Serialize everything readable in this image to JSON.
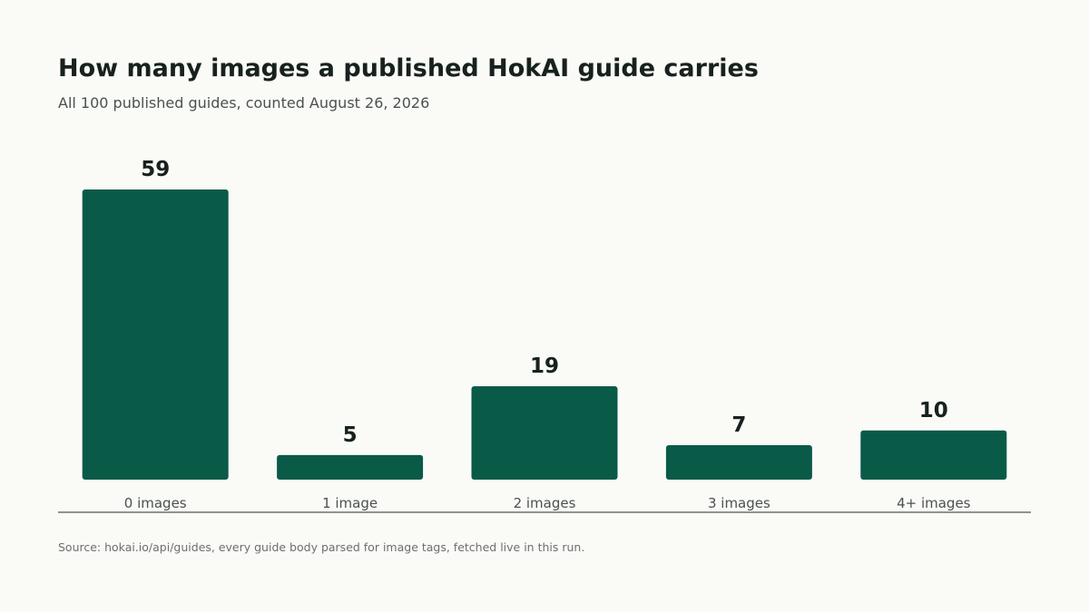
{
  "title": "How many images a published HokAI guide carries",
  "subtitle": "All 100 published guides, counted August 26, 2026",
  "source": "Source: hokai.io/api/guides, every guide body parsed for image tags, fetched live in this run.",
  "colors": {
    "bar": "#0a5a48",
    "axis": "#6b716e",
    "value_label": "#17211d",
    "tick_label": "#4a524e",
    "background": "#fafaf7"
  },
  "chart_data": {
    "type": "bar",
    "categories": [
      "0 images",
      "1 image",
      "2 images",
      "3 images",
      "4+ images"
    ],
    "values": [
      59,
      5,
      19,
      7,
      10
    ],
    "title": "How many images a published HokAI guide carries",
    "subtitle": "All 100 published guides, counted August 26, 2026",
    "xlabel": "",
    "ylabel": "",
    "ylim": [
      0,
      59
    ],
    "grid": false,
    "legend": "none",
    "data_labels": true
  }
}
